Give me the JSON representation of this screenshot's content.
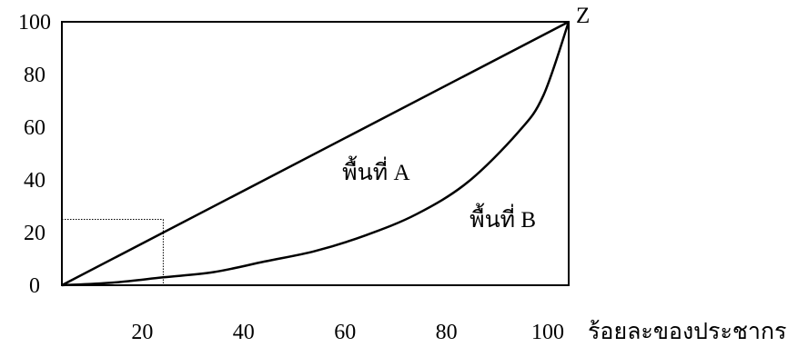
{
  "chart_data": {
    "type": "line",
    "title": "",
    "xlabel": "ร้อยละของประชากร",
    "ylabel": "",
    "xlim": [
      0,
      100
    ],
    "ylim": [
      0,
      100
    ],
    "x_ticks": [
      "20",
      "40",
      "60",
      "80",
      "100"
    ],
    "y_ticks": [
      "0",
      "20",
      "40",
      "60",
      "80",
      "100"
    ],
    "grid": false,
    "series": [
      {
        "x": [
          0,
          100
        ],
        "y": [
          0,
          100
        ]
      },
      {
        "x": [
          0,
          10,
          20,
          30,
          40,
          50,
          60,
          70,
          80,
          90,
          95,
          100
        ],
        "y": [
          0,
          1,
          3,
          5,
          9,
          13,
          19,
          27,
          39,
          58,
          72,
          100
        ]
      }
    ],
    "guide_point": {
      "x": 20,
      "y": 25
    },
    "annotations": [
      {
        "text": "พื้นที่ A",
        "x": 62,
        "y": 40
      },
      {
        "text": "พื้นที่ B",
        "x": 87,
        "y": 22
      },
      {
        "text": "Z",
        "x": 100,
        "y": 100
      }
    ]
  }
}
